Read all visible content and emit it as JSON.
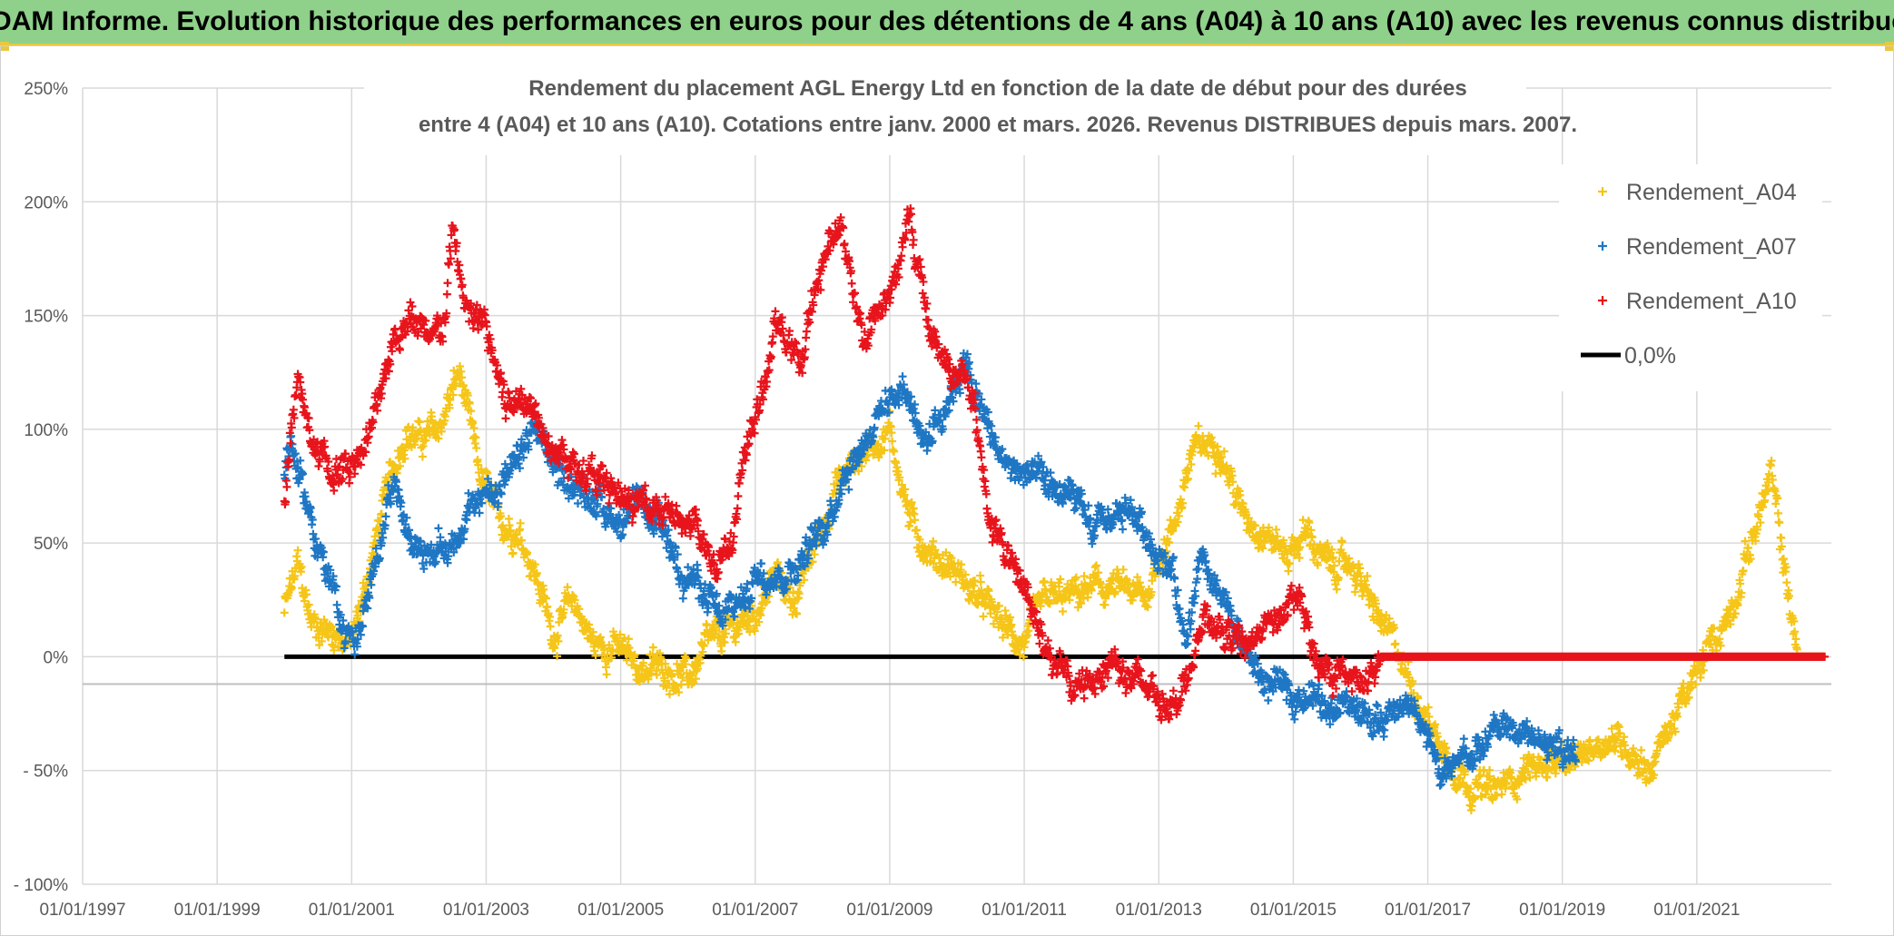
{
  "banner": {
    "text": "ADAM Informe. Evolution historique des performances en euros pour des détentions de 4 ans (A04) à 10 ans (A10) avec les revenus connus distribués"
  },
  "colors": {
    "A04": "#f5c518",
    "A07": "#1f77c4",
    "A10": "#e8141c",
    "zero": "#000000",
    "banner": "#8fd08a",
    "grid": "#d9d9d9"
  },
  "chart_data": {
    "type": "scatter",
    "title_line1": "Rendement du placement AGL Energy Ltd en fonction de la date de début pour des durées",
    "title_line2": "entre 4 (A04) et 10 ans (A10). Cotations entre janv. 2000 et mars. 2026. Revenus DISTRIBUES depuis mars. 2007.",
    "xlim": [
      1997.0,
      2023.0
    ],
    "ylim": [
      -100,
      250
    ],
    "x_ticks": [
      1997,
      1999,
      2001,
      2003,
      2005,
      2007,
      2009,
      2011,
      2013,
      2015,
      2017,
      2019,
      2021
    ],
    "x_tick_labels": [
      "01/01/1997",
      "01/01/1999",
      "01/01/2001",
      "01/01/2003",
      "01/01/2005",
      "01/01/2007",
      "01/01/2009",
      "01/01/2011",
      "01/01/2013",
      "01/01/2015",
      "01/01/2017",
      "01/01/2019",
      "01/01/2021"
    ],
    "y_ticks": [
      -100,
      -50,
      0,
      50,
      100,
      150,
      200,
      250
    ],
    "y_tick_labels": [
      "- 100%",
      "- 50%",
      "0%",
      "50%",
      "100%",
      "150%",
      "200%",
      "250%"
    ],
    "grid": true,
    "legend_position": "top-right",
    "series": [
      {
        "name": "Rendement_A04",
        "marker": "+",
        "key": [
          [
            2000.0,
            20
          ],
          [
            2000.2,
            40
          ],
          [
            2000.4,
            15
          ],
          [
            2000.8,
            10
          ],
          [
            2001.0,
            5
          ],
          [
            2001.2,
            30
          ],
          [
            2001.5,
            70
          ],
          [
            2001.8,
            100
          ],
          [
            2002.0,
            95
          ],
          [
            2002.3,
            100
          ],
          [
            2002.6,
            125
          ],
          [
            2002.9,
            80
          ],
          [
            2003.2,
            60
          ],
          [
            2003.5,
            55
          ],
          [
            2003.7,
            40
          ],
          [
            2004.0,
            10
          ],
          [
            2004.3,
            25
          ],
          [
            2004.6,
            5
          ],
          [
            2004.9,
            5
          ],
          [
            2005.3,
            -5
          ],
          [
            2005.7,
            -5
          ],
          [
            2006.0,
            -10
          ],
          [
            2006.3,
            5
          ],
          [
            2006.6,
            10
          ],
          [
            2007.0,
            20
          ],
          [
            2007.3,
            35
          ],
          [
            2007.6,
            25
          ],
          [
            2007.9,
            50
          ],
          [
            2008.2,
            75
          ],
          [
            2008.6,
            90
          ],
          [
            2009.0,
            100
          ],
          [
            2009.3,
            60
          ],
          [
            2009.6,
            45
          ],
          [
            2009.9,
            40
          ],
          [
            2010.2,
            30
          ],
          [
            2010.5,
            20
          ],
          [
            2010.8,
            10
          ],
          [
            2011.0,
            5
          ],
          [
            2011.3,
            25
          ],
          [
            2011.6,
            25
          ],
          [
            2012.0,
            30
          ],
          [
            2012.4,
            30
          ],
          [
            2012.8,
            25
          ],
          [
            2013.0,
            45
          ],
          [
            2013.2,
            55
          ],
          [
            2013.5,
            90
          ],
          [
            2013.9,
            95
          ],
          [
            2014.2,
            65
          ],
          [
            2014.6,
            55
          ],
          [
            2014.9,
            45
          ],
          [
            2015.2,
            55
          ],
          [
            2015.5,
            40
          ],
          [
            2015.9,
            40
          ],
          [
            2016.2,
            20
          ],
          [
            2016.5,
            5
          ],
          [
            2016.8,
            -15
          ],
          [
            2017.2,
            -40
          ],
          [
            2017.6,
            -55
          ],
          [
            2018.0,
            -60
          ],
          [
            2018.4,
            -50
          ],
          [
            2018.8,
            -45
          ],
          [
            2019.1,
            -50
          ],
          [
            2019.4,
            -40
          ],
          [
            2019.7,
            -35
          ],
          [
            2020.0,
            -40
          ],
          [
            2020.3,
            -50
          ],
          [
            2020.6,
            -30
          ],
          [
            2020.9,
            -15
          ],
          [
            2021.2,
            5
          ],
          [
            2021.5,
            20
          ],
          [
            2021.8,
            50
          ],
          [
            2022.1,
            80
          ],
          [
            2022.3,
            40
          ],
          [
            2022.5,
            0
          ],
          [
            2022.9,
            0
          ]
        ]
      },
      {
        "name": "Rendement_A07",
        "marker": "+",
        "key": [
          [
            2000.0,
            80
          ],
          [
            2000.1,
            95
          ],
          [
            2000.3,
            70
          ],
          [
            2000.6,
            40
          ],
          [
            2000.9,
            10
          ],
          [
            2001.1,
            10
          ],
          [
            2001.3,
            30
          ],
          [
            2001.6,
            80
          ],
          [
            2001.9,
            50
          ],
          [
            2002.2,
            45
          ],
          [
            2002.5,
            50
          ],
          [
            2002.8,
            65
          ],
          [
            2003.1,
            75
          ],
          [
            2003.4,
            80
          ],
          [
            2003.7,
            100
          ],
          [
            2004.0,
            85
          ],
          [
            2004.3,
            75
          ],
          [
            2004.6,
            70
          ],
          [
            2005.0,
            60
          ],
          [
            2005.3,
            65
          ],
          [
            2005.6,
            55
          ],
          [
            2005.9,
            40
          ],
          [
            2006.2,
            30
          ],
          [
            2006.5,
            15
          ],
          [
            2006.8,
            25
          ],
          [
            2007.1,
            40
          ],
          [
            2007.4,
            35
          ],
          [
            2007.7,
            45
          ],
          [
            2008.0,
            55
          ],
          [
            2008.3,
            80
          ],
          [
            2008.6,
            95
          ],
          [
            2008.9,
            110
          ],
          [
            2009.2,
            120
          ],
          [
            2009.5,
            95
          ],
          [
            2009.8,
            110
          ],
          [
            2010.1,
            130
          ],
          [
            2010.4,
            105
          ],
          [
            2010.7,
            85
          ],
          [
            2011.0,
            80
          ],
          [
            2011.3,
            75
          ],
          [
            2011.7,
            70
          ],
          [
            2012.0,
            55
          ],
          [
            2012.3,
            60
          ],
          [
            2012.6,
            65
          ],
          [
            2012.9,
            50
          ],
          [
            2013.2,
            40
          ],
          [
            2013.4,
            0
          ],
          [
            2013.6,
            40
          ],
          [
            2013.9,
            25
          ],
          [
            2014.2,
            10
          ],
          [
            2014.5,
            -10
          ],
          [
            2014.8,
            -15
          ],
          [
            2015.1,
            -15
          ],
          [
            2015.4,
            -20
          ],
          [
            2015.7,
            -20
          ],
          [
            2016.0,
            -25
          ],
          [
            2016.3,
            -30
          ],
          [
            2016.6,
            -20
          ],
          [
            2016.9,
            -25
          ],
          [
            2017.2,
            -55
          ],
          [
            2017.5,
            -45
          ],
          [
            2017.8,
            -40
          ],
          [
            2018.1,
            -30
          ],
          [
            2018.5,
            -35
          ],
          [
            2018.9,
            -40
          ],
          [
            2019.2,
            -40
          ]
        ]
      },
      {
        "name": "Rendement_A10",
        "marker": "+",
        "key": [
          [
            2000.0,
            70
          ],
          [
            2000.2,
            120
          ],
          [
            2000.4,
            95
          ],
          [
            2000.7,
            80
          ],
          [
            2001.0,
            85
          ],
          [
            2001.3,
            100
          ],
          [
            2001.6,
            140
          ],
          [
            2001.9,
            150
          ],
          [
            2002.2,
            135
          ],
          [
            2002.4,
            150
          ],
          [
            2002.5,
            190
          ],
          [
            2002.7,
            150
          ],
          [
            2003.0,
            145
          ],
          [
            2003.3,
            110
          ],
          [
            2003.6,
            115
          ],
          [
            2003.9,
            100
          ],
          [
            2004.2,
            85
          ],
          [
            2004.6,
            80
          ],
          [
            2004.9,
            70
          ],
          [
            2005.2,
            65
          ],
          [
            2005.5,
            70
          ],
          [
            2005.8,
            60
          ],
          [
            2006.1,
            55
          ],
          [
            2006.4,
            40
          ],
          [
            2006.7,
            60
          ],
          [
            2006.9,
            95
          ],
          [
            2007.1,
            115
          ],
          [
            2007.3,
            145
          ],
          [
            2007.7,
            130
          ],
          [
            2008.0,
            175
          ],
          [
            2008.3,
            190
          ],
          [
            2008.6,
            140
          ],
          [
            2008.9,
            155
          ],
          [
            2009.1,
            170
          ],
          [
            2009.3,
            190
          ],
          [
            2009.6,
            145
          ],
          [
            2009.9,
            125
          ],
          [
            2010.2,
            120
          ],
          [
            2010.5,
            60
          ],
          [
            2010.8,
            40
          ],
          [
            2011.1,
            25
          ],
          [
            2011.4,
            0
          ],
          [
            2011.7,
            -15
          ],
          [
            2012.0,
            -10
          ],
          [
            2012.3,
            0
          ],
          [
            2012.6,
            -10
          ],
          [
            2012.9,
            -15
          ],
          [
            2013.2,
            -20
          ],
          [
            2013.4,
            -10
          ],
          [
            2013.7,
            15
          ],
          [
            2014.0,
            10
          ],
          [
            2014.3,
            5
          ],
          [
            2014.6,
            15
          ],
          [
            2014.9,
            20
          ],
          [
            2015.1,
            25
          ],
          [
            2015.3,
            0
          ],
          [
            2015.6,
            -5
          ],
          [
            2015.9,
            -10
          ],
          [
            2016.1,
            -15
          ],
          [
            2016.3,
            0
          ],
          [
            2017.0,
            0
          ],
          [
            2018.0,
            0
          ],
          [
            2019.0,
            0
          ],
          [
            2020.0,
            0
          ],
          [
            2021.0,
            0
          ],
          [
            2022.0,
            0
          ],
          [
            2022.9,
            0
          ]
        ]
      }
    ],
    "zero_line": {
      "name": "0,0%",
      "x_start": 2000.0,
      "x_end": 2022.9,
      "value": 0
    }
  },
  "legend": {
    "items": [
      "Rendement_A04",
      "Rendement_A07",
      "Rendement_A10",
      "0,0%"
    ]
  }
}
